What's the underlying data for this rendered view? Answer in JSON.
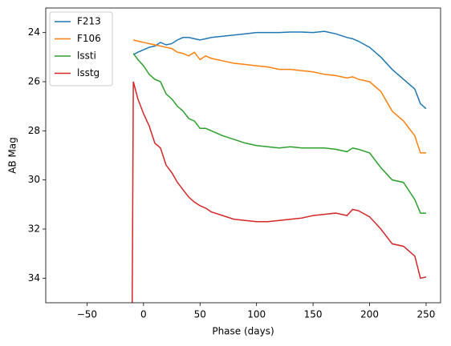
{
  "chart_data": {
    "type": "line",
    "xlabel": "Phase (days)",
    "ylabel": "AB Mag",
    "x": [
      -10,
      -9,
      -5,
      0,
      5,
      10,
      15,
      20,
      25,
      30,
      35,
      40,
      45,
      50,
      55,
      60,
      70,
      80,
      90,
      100,
      110,
      120,
      130,
      140,
      150,
      160,
      170,
      180,
      185,
      190,
      200,
      210,
      220,
      230,
      240,
      245,
      250
    ],
    "series": [
      {
        "name": "F213",
        "color": "#1f77b4",
        "values": [
          null,
          24.9,
          24.8,
          24.7,
          24.6,
          24.55,
          24.4,
          24.5,
          24.45,
          24.3,
          24.2,
          24.2,
          24.25,
          24.3,
          24.25,
          24.2,
          24.15,
          24.1,
          24.05,
          24.0,
          24.0,
          24.0,
          23.98,
          23.98,
          24.0,
          23.95,
          24.05,
          24.2,
          24.25,
          24.35,
          24.6,
          25.0,
          25.5,
          25.9,
          26.3,
          26.9,
          27.1
        ]
      },
      {
        "name": "F106",
        "color": "#ff7f0e",
        "values": [
          null,
          24.3,
          24.35,
          24.4,
          24.45,
          24.5,
          24.55,
          24.6,
          24.65,
          24.8,
          24.85,
          24.95,
          24.8,
          25.1,
          24.95,
          25.05,
          25.15,
          25.25,
          25.3,
          25.35,
          25.4,
          25.5,
          25.5,
          25.55,
          25.6,
          25.7,
          25.75,
          25.85,
          25.8,
          25.9,
          26.0,
          26.4,
          27.2,
          27.6,
          28.2,
          28.9,
          28.9
        ]
      },
      {
        "name": "lssti",
        "color": "#2ca02c",
        "values": [
          null,
          24.85,
          25.1,
          25.35,
          25.7,
          25.9,
          26.0,
          26.5,
          26.7,
          27.0,
          27.2,
          27.5,
          27.6,
          27.9,
          27.9,
          28.0,
          28.2,
          28.35,
          28.5,
          28.6,
          28.65,
          28.7,
          28.65,
          28.7,
          28.7,
          28.7,
          28.75,
          28.85,
          28.7,
          28.75,
          28.9,
          29.5,
          30.0,
          30.1,
          30.8,
          31.35,
          31.35
        ]
      },
      {
        "name": "lsstg",
        "color": "#d62728",
        "values": [
          35,
          26.0,
          26.7,
          27.3,
          27.8,
          28.5,
          28.7,
          29.4,
          29.7,
          30.1,
          30.4,
          30.7,
          30.9,
          31.05,
          31.15,
          31.3,
          31.45,
          31.6,
          31.65,
          31.7,
          31.7,
          31.65,
          31.6,
          31.55,
          31.45,
          31.4,
          31.35,
          31.45,
          31.2,
          31.25,
          31.5,
          32.0,
          32.6,
          32.7,
          33.1,
          34.0,
          33.95
        ]
      }
    ],
    "xlim": [
      -86.5,
      262.8
    ],
    "xticks": [
      {
        "value": -50,
        "label": "−50"
      },
      0,
      50,
      100,
      150,
      200,
      250
    ],
    "ylim": [
      35,
      23
    ],
    "yticks": [
      24,
      26,
      28,
      30,
      32,
      34
    ],
    "legend": "upper left",
    "grid": false
  }
}
